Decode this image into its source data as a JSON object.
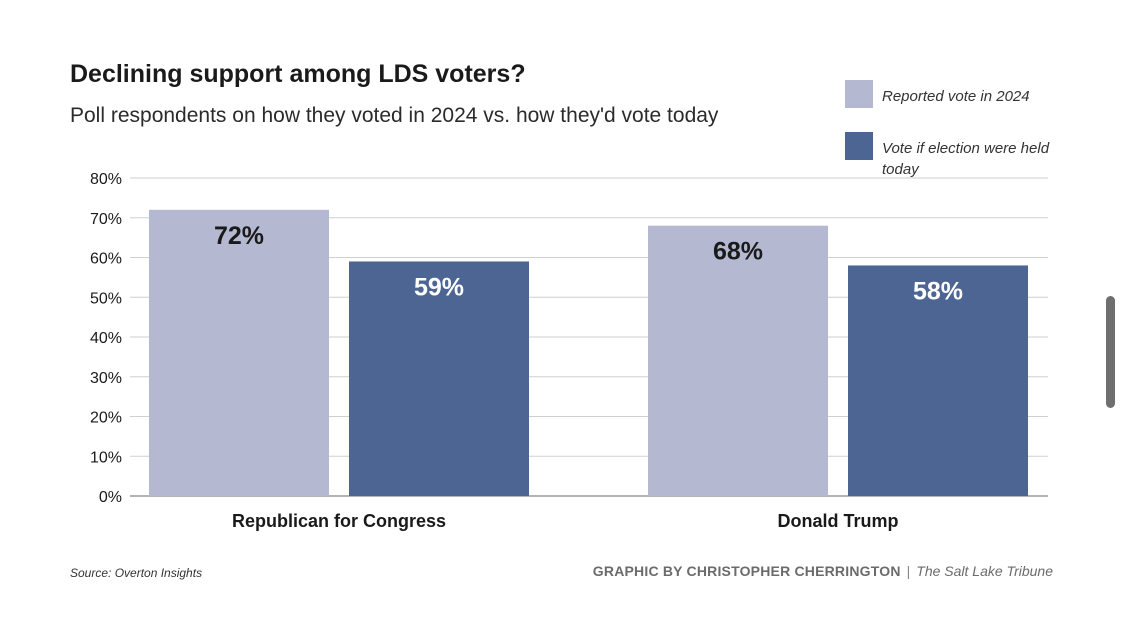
{
  "chart_data": {
    "type": "bar",
    "title": "Declining support among LDS voters?",
    "subtitle": "Poll respondents on how they voted in 2024 vs. how they'd vote today",
    "categories": [
      "Republican for Congress",
      "Donald Trump"
    ],
    "series": [
      {
        "name": "Reported vote in 2024",
        "values": [
          72,
          68
        ],
        "color": "#b4b9d1",
        "label_color": "#1a1a1a"
      },
      {
        "name": "Vote if election were held today",
        "values": [
          59,
          58
        ],
        "color": "#4d6593",
        "label_color": "#ffffff"
      }
    ],
    "data_labels": [
      [
        "72%",
        "68%"
      ],
      [
        "59%",
        "58%"
      ]
    ],
    "ylim": [
      0,
      80
    ],
    "yticks": [
      0,
      10,
      20,
      30,
      40,
      50,
      60,
      70,
      80
    ],
    "ytick_labels": [
      "0%",
      "10%",
      "20%",
      "30%",
      "40%",
      "50%",
      "60%",
      "70%",
      "80%"
    ],
    "xlabel": "",
    "ylabel": "",
    "grid": true,
    "legend_position": "top-right"
  },
  "legend": {
    "items": [
      {
        "label": "Reported vote in 2024",
        "color": "#b4b9d1"
      },
      {
        "label": "Vote if election were held today",
        "color": "#4d6593"
      }
    ]
  },
  "footer": {
    "source": "Source: Overton Insights",
    "credit_name": "GRAPHIC BY CHRISTOPHER CHERRINGTON",
    "separator": "|",
    "publication": "The Salt Lake Tribune"
  },
  "colors": {
    "grid": "#cfcfcf",
    "axis": "#9a9a9a",
    "text": "#1a1a1a"
  }
}
